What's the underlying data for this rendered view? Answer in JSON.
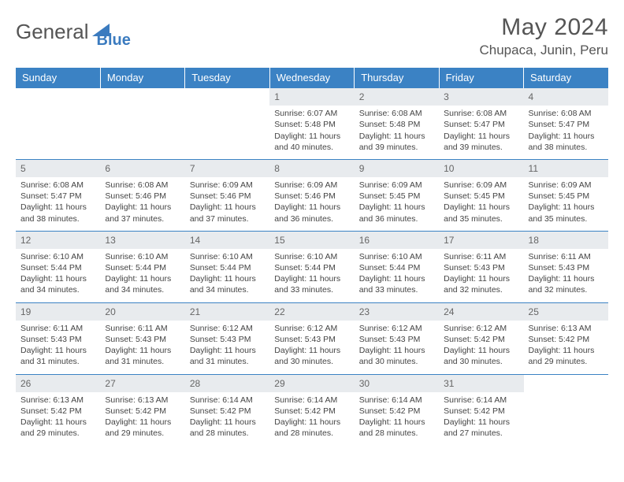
{
  "brand": {
    "name1": "General",
    "name2": "Blue"
  },
  "title": "May 2024",
  "location": "Chupaca, Junin, Peru",
  "colors": {
    "header_bg": "#3b82c4",
    "header_text": "#ffffff",
    "daynum_bg": "#e8ebee",
    "border": "#3b82c4",
    "logo_blue": "#3b7bbf",
    "text": "#444444"
  },
  "typography": {
    "title_fontsize": 30,
    "location_fontsize": 17,
    "header_fontsize": 13,
    "cell_fontsize": 10.5
  },
  "weekdays": [
    "Sunday",
    "Monday",
    "Tuesday",
    "Wednesday",
    "Thursday",
    "Friday",
    "Saturday"
  ],
  "weeks": [
    [
      null,
      null,
      null,
      {
        "n": "1",
        "sr": "6:07 AM",
        "ss": "5:48 PM",
        "dl": "11 hours and 40 minutes."
      },
      {
        "n": "2",
        "sr": "6:08 AM",
        "ss": "5:48 PM",
        "dl": "11 hours and 39 minutes."
      },
      {
        "n": "3",
        "sr": "6:08 AM",
        "ss": "5:47 PM",
        "dl": "11 hours and 39 minutes."
      },
      {
        "n": "4",
        "sr": "6:08 AM",
        "ss": "5:47 PM",
        "dl": "11 hours and 38 minutes."
      }
    ],
    [
      {
        "n": "5",
        "sr": "6:08 AM",
        "ss": "5:47 PM",
        "dl": "11 hours and 38 minutes."
      },
      {
        "n": "6",
        "sr": "6:08 AM",
        "ss": "5:46 PM",
        "dl": "11 hours and 37 minutes."
      },
      {
        "n": "7",
        "sr": "6:09 AM",
        "ss": "5:46 PM",
        "dl": "11 hours and 37 minutes."
      },
      {
        "n": "8",
        "sr": "6:09 AM",
        "ss": "5:46 PM",
        "dl": "11 hours and 36 minutes."
      },
      {
        "n": "9",
        "sr": "6:09 AM",
        "ss": "5:45 PM",
        "dl": "11 hours and 36 minutes."
      },
      {
        "n": "10",
        "sr": "6:09 AM",
        "ss": "5:45 PM",
        "dl": "11 hours and 35 minutes."
      },
      {
        "n": "11",
        "sr": "6:09 AM",
        "ss": "5:45 PM",
        "dl": "11 hours and 35 minutes."
      }
    ],
    [
      {
        "n": "12",
        "sr": "6:10 AM",
        "ss": "5:44 PM",
        "dl": "11 hours and 34 minutes."
      },
      {
        "n": "13",
        "sr": "6:10 AM",
        "ss": "5:44 PM",
        "dl": "11 hours and 34 minutes."
      },
      {
        "n": "14",
        "sr": "6:10 AM",
        "ss": "5:44 PM",
        "dl": "11 hours and 34 minutes."
      },
      {
        "n": "15",
        "sr": "6:10 AM",
        "ss": "5:44 PM",
        "dl": "11 hours and 33 minutes."
      },
      {
        "n": "16",
        "sr": "6:10 AM",
        "ss": "5:44 PM",
        "dl": "11 hours and 33 minutes."
      },
      {
        "n": "17",
        "sr": "6:11 AM",
        "ss": "5:43 PM",
        "dl": "11 hours and 32 minutes."
      },
      {
        "n": "18",
        "sr": "6:11 AM",
        "ss": "5:43 PM",
        "dl": "11 hours and 32 minutes."
      }
    ],
    [
      {
        "n": "19",
        "sr": "6:11 AM",
        "ss": "5:43 PM",
        "dl": "11 hours and 31 minutes."
      },
      {
        "n": "20",
        "sr": "6:11 AM",
        "ss": "5:43 PM",
        "dl": "11 hours and 31 minutes."
      },
      {
        "n": "21",
        "sr": "6:12 AM",
        "ss": "5:43 PM",
        "dl": "11 hours and 31 minutes."
      },
      {
        "n": "22",
        "sr": "6:12 AM",
        "ss": "5:43 PM",
        "dl": "11 hours and 30 minutes."
      },
      {
        "n": "23",
        "sr": "6:12 AM",
        "ss": "5:43 PM",
        "dl": "11 hours and 30 minutes."
      },
      {
        "n": "24",
        "sr": "6:12 AM",
        "ss": "5:42 PM",
        "dl": "11 hours and 30 minutes."
      },
      {
        "n": "25",
        "sr": "6:13 AM",
        "ss": "5:42 PM",
        "dl": "11 hours and 29 minutes."
      }
    ],
    [
      {
        "n": "26",
        "sr": "6:13 AM",
        "ss": "5:42 PM",
        "dl": "11 hours and 29 minutes."
      },
      {
        "n": "27",
        "sr": "6:13 AM",
        "ss": "5:42 PM",
        "dl": "11 hours and 29 minutes."
      },
      {
        "n": "28",
        "sr": "6:14 AM",
        "ss": "5:42 PM",
        "dl": "11 hours and 28 minutes."
      },
      {
        "n": "29",
        "sr": "6:14 AM",
        "ss": "5:42 PM",
        "dl": "11 hours and 28 minutes."
      },
      {
        "n": "30",
        "sr": "6:14 AM",
        "ss": "5:42 PM",
        "dl": "11 hours and 28 minutes."
      },
      {
        "n": "31",
        "sr": "6:14 AM",
        "ss": "5:42 PM",
        "dl": "11 hours and 27 minutes."
      },
      null
    ]
  ],
  "labels": {
    "sunrise": "Sunrise: ",
    "sunset": "Sunset: ",
    "daylight": "Daylight: "
  }
}
